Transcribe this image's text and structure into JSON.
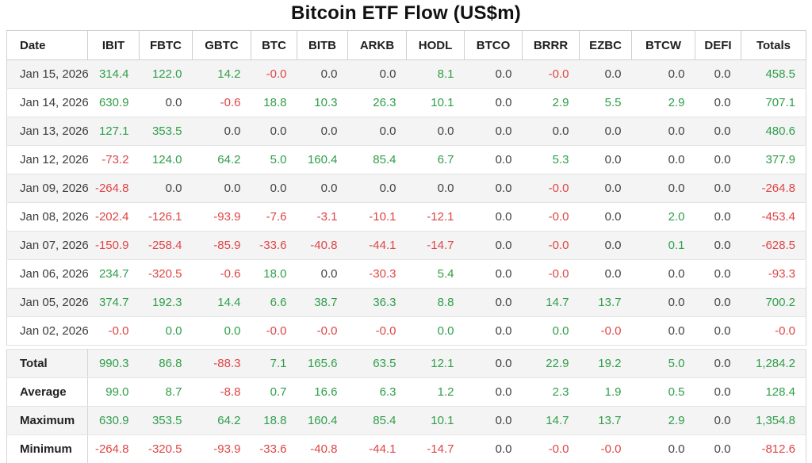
{
  "title": "Bitcoin ETF Flow (US$m)",
  "colors": {
    "positive": "#2f9e49",
    "negative": "#df4545",
    "neutral": "#424242"
  },
  "table": {
    "columns": [
      "Date",
      "IBIT",
      "FBTC",
      "GBTC",
      "BTC",
      "BITB",
      "ARKB",
      "HODL",
      "BTCO",
      "BRRR",
      "EZBC",
      "BTCW",
      "DEFI",
      "Totals"
    ],
    "rows": [
      {
        "label": "Jan 15, 2026",
        "values": [
          "314.4",
          "122.0",
          "14.2",
          "-0.0",
          "0.0",
          "0.0",
          "8.1",
          "0.0",
          "-0.0",
          "0.0",
          "0.0",
          "0.0",
          "458.5"
        ],
        "tones": [
          "g",
          "g",
          "g",
          "r",
          "n",
          "n",
          "g",
          "n",
          "r",
          "n",
          "n",
          "n",
          "g"
        ]
      },
      {
        "label": "Jan 14, 2026",
        "values": [
          "630.9",
          "0.0",
          "-0.6",
          "18.8",
          "10.3",
          "26.3",
          "10.1",
          "0.0",
          "2.9",
          "5.5",
          "2.9",
          "0.0",
          "707.1"
        ],
        "tones": [
          "g",
          "n",
          "r",
          "g",
          "g",
          "g",
          "g",
          "n",
          "g",
          "g",
          "g",
          "n",
          "g"
        ]
      },
      {
        "label": "Jan 13, 2026",
        "values": [
          "127.1",
          "353.5",
          "0.0",
          "0.0",
          "0.0",
          "0.0",
          "0.0",
          "0.0",
          "0.0",
          "0.0",
          "0.0",
          "0.0",
          "480.6"
        ],
        "tones": [
          "g",
          "g",
          "n",
          "n",
          "n",
          "n",
          "n",
          "n",
          "n",
          "n",
          "n",
          "n",
          "g"
        ]
      },
      {
        "label": "Jan 12, 2026",
        "values": [
          "-73.2",
          "124.0",
          "64.2",
          "5.0",
          "160.4",
          "85.4",
          "6.7",
          "0.0",
          "5.3",
          "0.0",
          "0.0",
          "0.0",
          "377.9"
        ],
        "tones": [
          "r",
          "g",
          "g",
          "g",
          "g",
          "g",
          "g",
          "n",
          "g",
          "n",
          "n",
          "n",
          "g"
        ]
      },
      {
        "label": "Jan 09, 2026",
        "values": [
          "-264.8",
          "0.0",
          "0.0",
          "0.0",
          "0.0",
          "0.0",
          "0.0",
          "0.0",
          "-0.0",
          "0.0",
          "0.0",
          "0.0",
          "-264.8"
        ],
        "tones": [
          "r",
          "n",
          "n",
          "n",
          "n",
          "n",
          "n",
          "n",
          "r",
          "n",
          "n",
          "n",
          "r"
        ]
      },
      {
        "label": "Jan 08, 2026",
        "values": [
          "-202.4",
          "-126.1",
          "-93.9",
          "-7.6",
          "-3.1",
          "-10.1",
          "-12.1",
          "0.0",
          "-0.0",
          "0.0",
          "2.0",
          "0.0",
          "-453.4"
        ],
        "tones": [
          "r",
          "r",
          "r",
          "r",
          "r",
          "r",
          "r",
          "n",
          "r",
          "n",
          "g",
          "n",
          "r"
        ]
      },
      {
        "label": "Jan 07, 2026",
        "values": [
          "-150.9",
          "-258.4",
          "-85.9",
          "-33.6",
          "-40.8",
          "-44.1",
          "-14.7",
          "0.0",
          "-0.0",
          "0.0",
          "0.1",
          "0.0",
          "-628.5"
        ],
        "tones": [
          "r",
          "r",
          "r",
          "r",
          "r",
          "r",
          "r",
          "n",
          "r",
          "n",
          "g",
          "n",
          "r"
        ]
      },
      {
        "label": "Jan 06, 2026",
        "values": [
          "234.7",
          "-320.5",
          "-0.6",
          "18.0",
          "0.0",
          "-30.3",
          "5.4",
          "0.0",
          "-0.0",
          "0.0",
          "0.0",
          "0.0",
          "-93.3"
        ],
        "tones": [
          "g",
          "r",
          "r",
          "g",
          "n",
          "r",
          "g",
          "n",
          "r",
          "n",
          "n",
          "n",
          "r"
        ]
      },
      {
        "label": "Jan 05, 2026",
        "values": [
          "374.7",
          "192.3",
          "14.4",
          "6.6",
          "38.7",
          "36.3",
          "8.8",
          "0.0",
          "14.7",
          "13.7",
          "0.0",
          "0.0",
          "700.2"
        ],
        "tones": [
          "g",
          "g",
          "g",
          "g",
          "g",
          "g",
          "g",
          "n",
          "g",
          "g",
          "n",
          "n",
          "g"
        ]
      },
      {
        "label": "Jan 02, 2026",
        "values": [
          "-0.0",
          "0.0",
          "0.0",
          "-0.0",
          "-0.0",
          "-0.0",
          "0.0",
          "0.0",
          "0.0",
          "-0.0",
          "0.0",
          "0.0",
          "-0.0"
        ],
        "tones": [
          "r",
          "g",
          "g",
          "r",
          "r",
          "r",
          "g",
          "n",
          "g",
          "r",
          "n",
          "n",
          "r"
        ]
      }
    ],
    "summary_rows": [
      {
        "label": "Total",
        "values": [
          "990.3",
          "86.8",
          "-88.3",
          "7.1",
          "165.6",
          "63.5",
          "12.1",
          "0.0",
          "22.9",
          "19.2",
          "5.0",
          "0.0",
          "1,284.2"
        ],
        "tones": [
          "g",
          "g",
          "r",
          "g",
          "g",
          "g",
          "g",
          "n",
          "g",
          "g",
          "g",
          "n",
          "g"
        ]
      },
      {
        "label": "Average",
        "values": [
          "99.0",
          "8.7",
          "-8.8",
          "0.7",
          "16.6",
          "6.3",
          "1.2",
          "0.0",
          "2.3",
          "1.9",
          "0.5",
          "0.0",
          "128.4"
        ],
        "tones": [
          "g",
          "g",
          "r",
          "g",
          "g",
          "g",
          "g",
          "n",
          "g",
          "g",
          "g",
          "n",
          "g"
        ]
      },
      {
        "label": "Maximum",
        "values": [
          "630.9",
          "353.5",
          "64.2",
          "18.8",
          "160.4",
          "85.4",
          "10.1",
          "0.0",
          "14.7",
          "13.7",
          "2.9",
          "0.0",
          "1,354.8"
        ],
        "tones": [
          "g",
          "g",
          "g",
          "g",
          "g",
          "g",
          "g",
          "n",
          "g",
          "g",
          "g",
          "n",
          "g"
        ]
      },
      {
        "label": "Minimum",
        "values": [
          "-264.8",
          "-320.5",
          "-93.9",
          "-33.6",
          "-40.8",
          "-44.1",
          "-14.7",
          "0.0",
          "-0.0",
          "-0.0",
          "0.0",
          "0.0",
          "-812.6"
        ],
        "tones": [
          "r",
          "r",
          "r",
          "r",
          "r",
          "r",
          "r",
          "n",
          "r",
          "r",
          "n",
          "n",
          "r"
        ]
      }
    ]
  }
}
